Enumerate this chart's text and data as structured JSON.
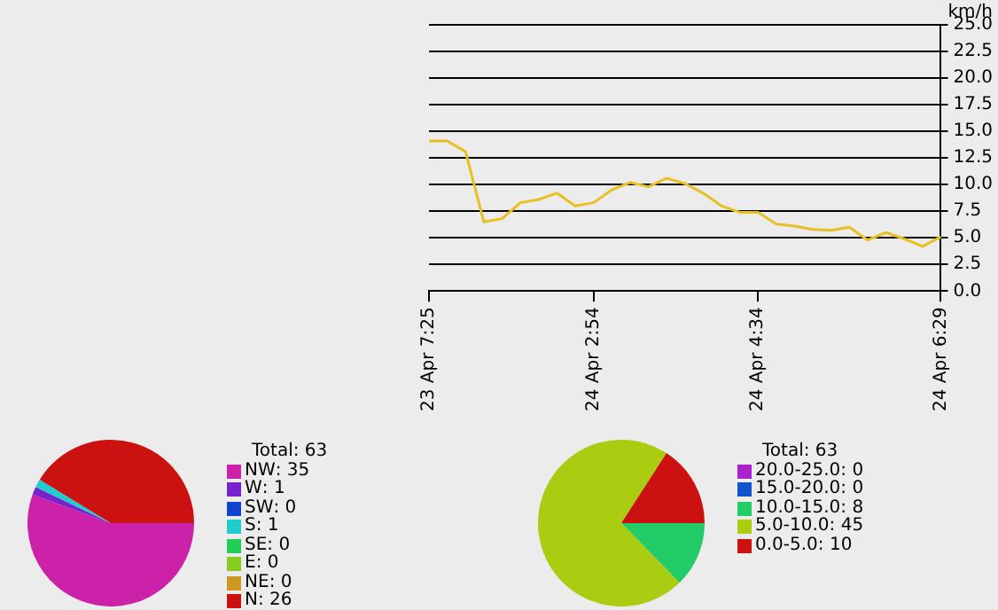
{
  "chart_data": [
    {
      "type": "line",
      "ylabel": "km/h",
      "categories": [
        "23 Apr 7:25",
        null,
        null,
        null,
        null,
        null,
        null,
        null,
        null,
        "24 Apr 2:54",
        null,
        null,
        null,
        null,
        null,
        null,
        null,
        null,
        "24 Apr 4:34",
        null,
        null,
        null,
        null,
        null,
        null,
        null,
        null,
        null,
        "24 Apr 6:29"
      ],
      "series": [
        {
          "color": "#e8c020",
          "values": [
            14.1,
            14.1,
            13.1,
            6.5,
            6.8,
            8.3,
            8.6,
            9.2,
            8.0,
            8.3,
            9.5,
            10.2,
            9.8,
            10.6,
            10.1,
            9.2,
            8.0,
            7.4,
            7.4,
            6.3,
            6.1,
            5.8,
            5.7,
            6.0,
            4.8,
            5.5,
            4.9,
            4.2,
            5.1
          ]
        }
      ],
      "ylim": [
        0,
        25
      ],
      "yticks": [
        {
          "value": 0,
          "label": "0.0"
        },
        {
          "value": 2.5,
          "label": "2.5"
        },
        {
          "value": 5,
          "label": "5.0"
        },
        {
          "value": 7.5,
          "label": "7.5"
        },
        {
          "value": 10,
          "label": "10.0"
        },
        {
          "value": 12.5,
          "label": "12.5"
        },
        {
          "value": 15,
          "label": "15.0"
        },
        {
          "value": 17.5,
          "label": "17.5"
        },
        {
          "value": 20,
          "label": "20.0"
        },
        {
          "value": 22.5,
          "label": "22.5"
        },
        {
          "value": 25,
          "label": "25.0"
        }
      ],
      "grid": "y",
      "marker": "none",
      "legend": false
    },
    {
      "type": "pie",
      "legend_title": "Total: 63",
      "legend": "right",
      "categories": [
        "NW",
        "W",
        "SW",
        "S",
        "SE",
        "E",
        "NE",
        "N"
      ],
      "values": [
        35,
        1,
        0,
        1,
        0,
        0,
        0,
        26
      ],
      "value_labels": [
        ": 35",
        ": 1",
        ": 0",
        ": 1",
        ": 0",
        ": 0",
        ": 0",
        ": 26"
      ],
      "colors": [
        "#cc22aa",
        "#7722cc",
        "#1144cc",
        "#22cccc",
        "#22cc55",
        "#88cc22",
        "#cc9922",
        "#cc1111"
      ]
    },
    {
      "type": "pie",
      "legend_title": "Total: 63",
      "legend": "right",
      "categories": [
        "20.0-25.0",
        "15.0-20.0",
        "10.0-15.0",
        "5.0-10.0",
        "0.0-5.0"
      ],
      "values": [
        0,
        0,
        8,
        45,
        10
      ],
      "value_labels": [
        ": 0",
        ": 0",
        ": 8",
        ": 45",
        ": 10"
      ],
      "colors": [
        "#aa22cc",
        "#1155cc",
        "#22cc66",
        "#aacc11",
        "#cc1111"
      ]
    }
  ]
}
